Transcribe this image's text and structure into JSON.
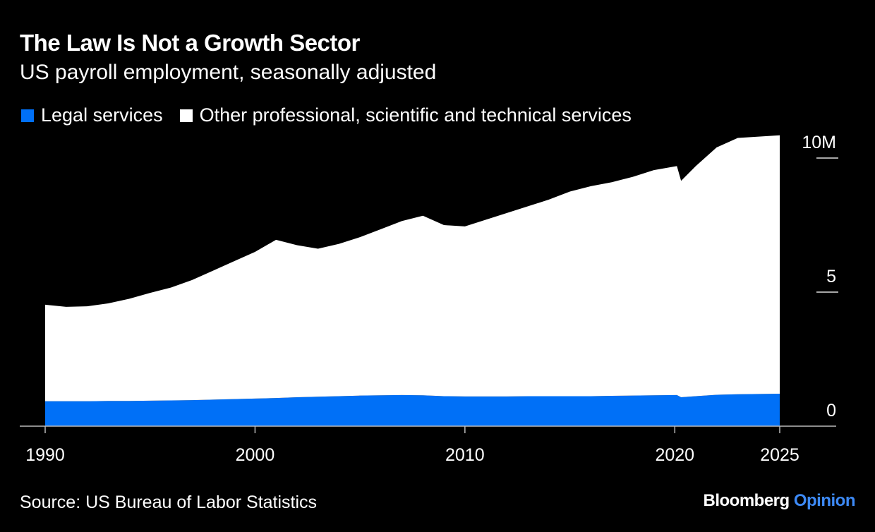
{
  "header": {
    "title": "The Law Is Not a Growth Sector",
    "subtitle": "US payroll employment, seasonally adjusted"
  },
  "legend": [
    {
      "label": "Legal services",
      "color": "#0070f7"
    },
    {
      "label": "Other professional, scientific and technical services",
      "color": "#ffffff"
    }
  ],
  "footer": {
    "source": "Source: US Bureau of Labor Statistics",
    "brand_main": "Bloomberg",
    "brand_accent": "Opinion"
  },
  "chart_data": {
    "type": "area",
    "stacked": true,
    "title": "The Law Is Not a Growth Sector",
    "subtitle": "US payroll employment, seasonally adjusted",
    "xlabel": "",
    "ylabel": "",
    "xlim": [
      1990,
      2025
    ],
    "ylim": [
      0,
      11
    ],
    "x_ticks": [
      1990,
      2000,
      2010,
      2020,
      2025
    ],
    "y_ticks": [
      {
        "value": 0,
        "label": "0"
      },
      {
        "value": 5,
        "label": "5"
      },
      {
        "value": 10,
        "label": "10M"
      }
    ],
    "y_axis_position": "right",
    "grid": false,
    "legend_position": "top-left",
    "x": [
      1990,
      1991,
      1992,
      1993,
      1994,
      1995,
      1996,
      1997,
      1998,
      1999,
      2000,
      2001,
      2002,
      2003,
      2004,
      2005,
      2006,
      2007,
      2008,
      2009,
      2010,
      2011,
      2012,
      2013,
      2014,
      2015,
      2016,
      2017,
      2018,
      2019,
      2020.1,
      2020.3,
      2021,
      2022,
      2023,
      2024,
      2025
    ],
    "series": [
      {
        "name": "Legal services",
        "color": "#0070f7",
        "values": [
          0.93,
          0.93,
          0.93,
          0.94,
          0.94,
          0.95,
          0.96,
          0.97,
          0.99,
          1.01,
          1.03,
          1.05,
          1.08,
          1.1,
          1.12,
          1.14,
          1.15,
          1.16,
          1.15,
          1.12,
          1.11,
          1.11,
          1.11,
          1.12,
          1.12,
          1.12,
          1.12,
          1.13,
          1.14,
          1.15,
          1.16,
          1.08,
          1.12,
          1.17,
          1.19,
          1.2,
          1.21
        ]
      },
      {
        "name": "Other professional, scientific and technical services",
        "color": "#ffffff",
        "values": [
          3.6,
          3.52,
          3.54,
          3.64,
          3.81,
          4.02,
          4.21,
          4.48,
          4.81,
          5.14,
          5.47,
          5.9,
          5.67,
          5.52,
          5.68,
          5.91,
          6.2,
          6.49,
          6.7,
          6.38,
          6.34,
          6.59,
          6.84,
          7.08,
          7.33,
          7.63,
          7.83,
          7.97,
          8.16,
          8.4,
          8.54,
          8.07,
          8.58,
          9.23,
          9.56,
          9.6,
          9.64
        ]
      }
    ]
  }
}
